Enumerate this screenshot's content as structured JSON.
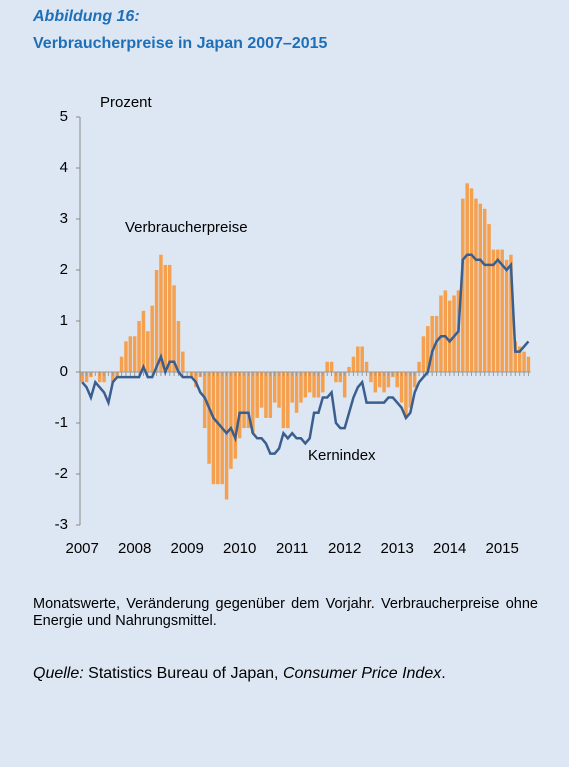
{
  "chart_data": {
    "type": "bar",
    "label": "Abbildung 16:",
    "title": "Verbraucherpreise in Japan 2007–2015",
    "y_unit": "Prozent",
    "categories": [
      "2007",
      null,
      null,
      null,
      null,
      null,
      null,
      null,
      null,
      null,
      null,
      null,
      "2008",
      null,
      null,
      null,
      null,
      null,
      null,
      null,
      null,
      null,
      null,
      null,
      "2009",
      null,
      null,
      null,
      null,
      null,
      null,
      null,
      null,
      null,
      null,
      null,
      "2010",
      null,
      null,
      null,
      null,
      null,
      null,
      null,
      null,
      null,
      null,
      null,
      "2011",
      null,
      null,
      null,
      null,
      null,
      null,
      null,
      null,
      null,
      null,
      null,
      "2012",
      null,
      null,
      null,
      null,
      null,
      null,
      null,
      null,
      null,
      null,
      null,
      "2013",
      null,
      null,
      null,
      null,
      null,
      null,
      null,
      null,
      null,
      null,
      null,
      "2014",
      null,
      null,
      null,
      null,
      null,
      null,
      null,
      null,
      null,
      null,
      null,
      "2015",
      null,
      null,
      null,
      null,
      null,
      null
    ],
    "series": [
      {
        "name": "Verbraucherpreise",
        "type": "bar",
        "color": "#f5a04e",
        "values": [
          -0.2,
          -0.2,
          -0.1,
          0,
          -0.2,
          -0.2,
          0,
          -0.2,
          -0.1,
          0.3,
          0.6,
          0.7,
          0.7,
          1.0,
          1.2,
          0.8,
          1.3,
          2.0,
          2.3,
          2.1,
          2.1,
          1.7,
          1.0,
          0.4,
          0,
          -0.1,
          -0.3,
          -0.1,
          -1.1,
          -1.8,
          -2.2,
          -2.2,
          -2.2,
          -2.5,
          -1.9,
          -1.7,
          -1.3,
          -1.1,
          -1.1,
          -1.2,
          -0.9,
          -0.7,
          -0.9,
          -0.9,
          -0.6,
          -0.7,
          -1.1,
          -1.1,
          -0.6,
          -0.8,
          -0.6,
          -0.5,
          -0.4,
          -0.5,
          -0.5,
          -0.4,
          0.2,
          0.2,
          -0.2,
          -0.2,
          -0.5,
          0.1,
          0.3,
          0.5,
          0.5,
          0.2,
          -0.2,
          -0.4,
          -0.3,
          -0.4,
          -0.3,
          -0.1,
          -0.3,
          -0.6,
          -0.9,
          -0.7,
          -0.3,
          0.2,
          0.7,
          0.9,
          1.1,
          1.1,
          1.5,
          1.6,
          1.4,
          1.5,
          1.6,
          3.4,
          3.7,
          3.6,
          3.4,
          3.3,
          3.2,
          2.9,
          2.4,
          2.4,
          2.4,
          2.2,
          2.3,
          0.6,
          0.5,
          0.4,
          0.3
        ]
      },
      {
        "name": "Kernindex",
        "type": "line",
        "color": "#3a5f8f",
        "values": [
          -0.2,
          -0.3,
          -0.5,
          -0.2,
          -0.3,
          -0.4,
          -0.6,
          -0.2,
          -0.1,
          -0.1,
          -0.1,
          -0.1,
          -0.1,
          -0.1,
          0.1,
          -0.1,
          -0.1,
          0.1,
          0.3,
          0,
          0.2,
          0.2,
          0,
          -0.1,
          -0.1,
          -0.1,
          -0.2,
          -0.4,
          -0.5,
          -0.7,
          -0.9,
          -1.0,
          -1.1,
          -1.2,
          -1.1,
          -1.3,
          -0.8,
          -0.8,
          -0.8,
          -1.2,
          -1.3,
          -1.3,
          -1.4,
          -1.6,
          -1.6,
          -1.5,
          -1.2,
          -1.3,
          -1.2,
          -1.3,
          -1.3,
          -1.4,
          -1.3,
          -0.8,
          -0.8,
          -0.5,
          -0.5,
          -0.4,
          -1.0,
          -1.1,
          -1.1,
          -0.8,
          -0.5,
          -0.3,
          -0.2,
          -0.6,
          -0.6,
          -0.6,
          -0.6,
          -0.6,
          -0.5,
          -0.5,
          -0.6,
          -0.7,
          -0.9,
          -0.8,
          -0.4,
          -0.2,
          -0.1,
          0,
          0.4,
          0.6,
          0.7,
          0.7,
          0.6,
          0.7,
          0.8,
          2.2,
          2.3,
          2.3,
          2.2,
          2.2,
          2.1,
          2.1,
          2.1,
          2.2,
          2.1,
          2.0,
          2.1,
          0.4,
          0.4,
          0.5,
          0.6
        ]
      }
    ],
    "ylim": [
      -3,
      5
    ],
    "yticks": [
      -3,
      -2,
      -1,
      0,
      1,
      2,
      3,
      4,
      5
    ],
    "note": "Monatswerte, Veränderung gegenüber dem Vorjahr. Verbraucherpreise ohne Energie und Nahrungsmittel.",
    "source": {
      "label": "Quelle:",
      "text": "Statistics Bureau of Japan,",
      "publication": "Consumer Price Index",
      "end": "."
    }
  }
}
